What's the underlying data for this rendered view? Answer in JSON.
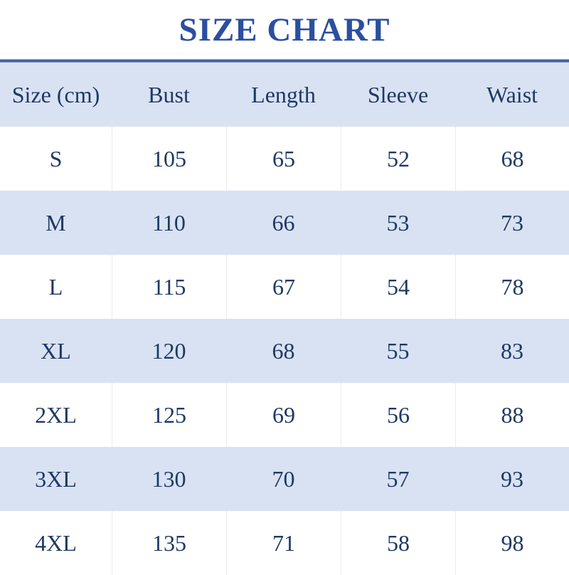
{
  "page": {
    "title": "SIZE CHART"
  },
  "colors": {
    "title_blue": "#2b4f9f",
    "text_navy": "#1f3864",
    "stripe_bg": "#d9e2f3",
    "rule_blue": "#3f5fa3",
    "rule_edge": "#a9bbde",
    "divider": "#ebebeb",
    "page_bg": "#ffffff"
  },
  "table": {
    "headers": [
      "Size (cm)",
      "Bust",
      "Length",
      "Sleeve",
      "Waist"
    ],
    "rows": [
      [
        "S",
        "105",
        "65",
        "52",
        "68"
      ],
      [
        "M",
        "110",
        "66",
        "53",
        "73"
      ],
      [
        "L",
        "115",
        "67",
        "54",
        "78"
      ],
      [
        "XL",
        "120",
        "68",
        "55",
        "83"
      ],
      [
        "2XL",
        "125",
        "69",
        "56",
        "88"
      ],
      [
        "3XL",
        "130",
        "70",
        "57",
        "93"
      ],
      [
        "4XL",
        "135",
        "71",
        "58",
        "98"
      ]
    ]
  }
}
